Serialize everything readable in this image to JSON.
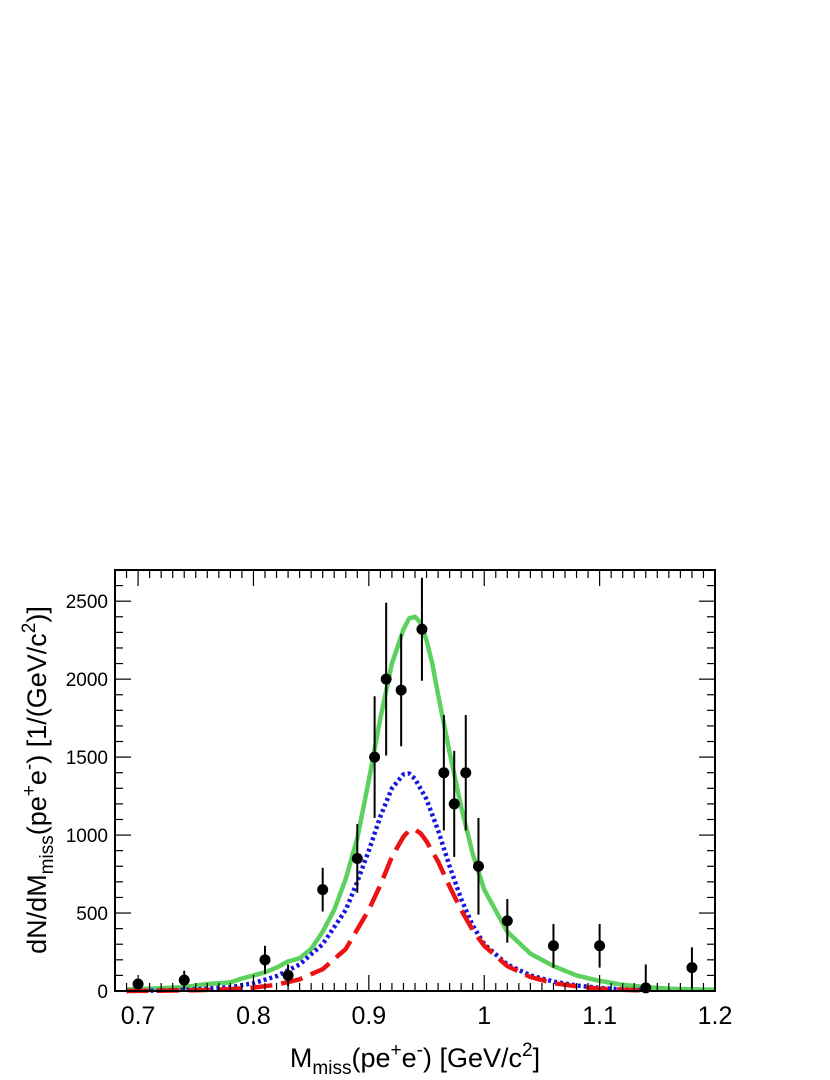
{
  "chart_data": {
    "type": "line",
    "title": "",
    "xlabel": {
      "base": "M",
      "sub": "miss",
      "mid": "(pe",
      "sup1": "+",
      "mid2": "e",
      "sup2": "-",
      "tail": ") [GeV/c",
      "sup3": "2",
      "end": "]"
    },
    "ylabel": {
      "base": "dN/dM",
      "sub": "miss",
      "mid": "(pe",
      "sup1": "+",
      "mid2": "e",
      "sup2": "-",
      "tail": ") [1/(GeV/c",
      "sup3": "2",
      "end": ")]"
    },
    "xlim": [
      0.68,
      1.2
    ],
    "ylim": [
      0,
      2700
    ],
    "x_ticks": [
      0.7,
      0.8,
      0.9,
      1.0,
      1.1,
      1.2
    ],
    "x_tick_labels": [
      "0.7",
      "0.8",
      "0.9",
      "1",
      "1.1",
      "1.2"
    ],
    "y_ticks": [
      0,
      500,
      1000,
      1500,
      2000,
      2500
    ],
    "y_tick_labels": [
      "0",
      "500",
      "1000",
      "1500",
      "2000",
      "2500"
    ],
    "grid": false,
    "legend": "none",
    "data_points": [
      {
        "x": 0.7,
        "y": 45,
        "err": 30
      },
      {
        "x": 0.74,
        "y": 70,
        "err": 60
      },
      {
        "x": 0.81,
        "y": 200,
        "err": 90
      },
      {
        "x": 0.83,
        "y": 100,
        "err": 70
      },
      {
        "x": 0.86,
        "y": 650,
        "err": 140
      },
      {
        "x": 0.89,
        "y": 850,
        "err": 220
      },
      {
        "x": 0.905,
        "y": 1500,
        "err": 390
      },
      {
        "x": 0.915,
        "y": 2000,
        "err": 490
      },
      {
        "x": 0.928,
        "y": 1930,
        "err": 360
      },
      {
        "x": 0.946,
        "y": 2320,
        "err": 330
      },
      {
        "x": 0.965,
        "y": 1400,
        "err": 370
      },
      {
        "x": 0.974,
        "y": 1200,
        "err": 340
      },
      {
        "x": 0.984,
        "y": 1400,
        "err": 370
      },
      {
        "x": 0.995,
        "y": 800,
        "err": 310
      },
      {
        "x": 1.02,
        "y": 450,
        "err": 140
      },
      {
        "x": 1.06,
        "y": 290,
        "err": 140
      },
      {
        "x": 1.1,
        "y": 290,
        "err": 140
      },
      {
        "x": 1.14,
        "y": 20,
        "err": 150
      },
      {
        "x": 1.18,
        "y": 150,
        "err": 130
      }
    ],
    "series": [
      {
        "color": "#5dd15d",
        "dash": "solid",
        "x": [
          0.69,
          0.7,
          0.72,
          0.74,
          0.76,
          0.78,
          0.79,
          0.8,
          0.81,
          0.82,
          0.83,
          0.84,
          0.85,
          0.86,
          0.87,
          0.88,
          0.89,
          0.9,
          0.91,
          0.92,
          0.93,
          0.935,
          0.94,
          0.945,
          0.95,
          0.955,
          0.96,
          0.97,
          0.98,
          0.99,
          1.0,
          1.02,
          1.04,
          1.06,
          1.08,
          1.1,
          1.12,
          1.14,
          1.16,
          1.18,
          1.2
        ],
        "y": [
          10,
          12,
          18,
          25,
          45,
          55,
          80,
          100,
          120,
          150,
          190,
          210,
          270,
          380,
          520,
          720,
          980,
          1350,
          1750,
          2100,
          2320,
          2390,
          2400,
          2360,
          2250,
          2100,
          1900,
          1530,
          1180,
          880,
          650,
          380,
          240,
          160,
          100,
          65,
          40,
          25,
          15,
          10,
          8
        ]
      },
      {
        "color": "#1616e0",
        "dash": "dotted",
        "x": [
          0.69,
          0.72,
          0.75,
          0.78,
          0.8,
          0.82,
          0.84,
          0.86,
          0.88,
          0.89,
          0.9,
          0.91,
          0.92,
          0.93,
          0.935,
          0.94,
          0.95,
          0.96,
          0.97,
          0.98,
          0.99,
          1.0,
          1.02,
          1.04,
          1.06,
          1.08,
          1.1,
          1.12,
          1.14
        ],
        "y": [
          0,
          3,
          10,
          25,
          50,
          95,
          170,
          300,
          520,
          700,
          900,
          1120,
          1300,
          1390,
          1395,
          1360,
          1230,
          1030,
          800,
          590,
          420,
          300,
          170,
          100,
          60,
          35,
          20,
          10,
          5
        ]
      },
      {
        "color": "#ee1111",
        "dash": "dashed",
        "x": [
          0.69,
          0.72,
          0.75,
          0.78,
          0.8,
          0.82,
          0.84,
          0.86,
          0.88,
          0.9,
          0.91,
          0.92,
          0.93,
          0.935,
          0.94,
          0.945,
          0.95,
          0.96,
          0.97,
          0.98,
          0.99,
          1.0,
          1.02,
          1.04,
          1.06,
          1.08,
          1.1,
          1.12,
          1.14
        ],
        "y": [
          0,
          2,
          5,
          12,
          22,
          40,
          75,
          140,
          270,
          520,
          680,
          860,
          990,
          1030,
          1035,
          1010,
          960,
          830,
          670,
          520,
          390,
          290,
          160,
          90,
          50,
          30,
          15,
          8,
          3
        ]
      }
    ]
  }
}
